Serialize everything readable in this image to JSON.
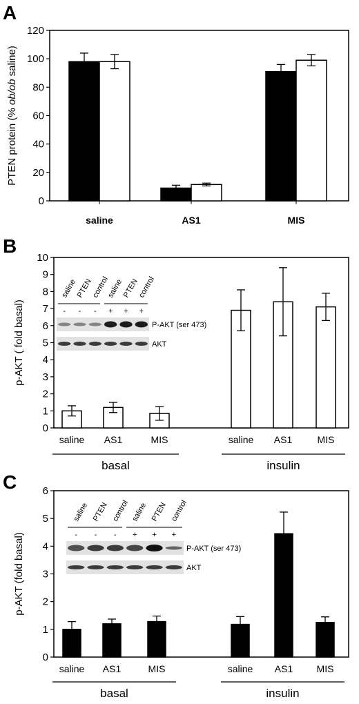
{
  "chart_data": [
    {
      "panel": "A",
      "type": "bar",
      "ylabel_parts": [
        "PTEN protein (% ",
        "ob/ob",
        " saline)"
      ],
      "ylim": [
        0,
        120
      ],
      "yticks": [
        0,
        20,
        40,
        60,
        80,
        100,
        120
      ],
      "categories": [
        "saline",
        "AS1",
        "MIS"
      ],
      "series": [
        {
          "color": "#000000",
          "values": [
            98,
            9,
            91
          ],
          "errors": [
            6,
            2,
            5
          ]
        },
        {
          "color": "#ffffff",
          "values": [
            98,
            11.5,
            99
          ],
          "errors": [
            5,
            1,
            4
          ]
        }
      ]
    },
    {
      "panel": "B",
      "type": "bar",
      "ylabel": "p-AKT ( fold basal)",
      "ylim": [
        0,
        10
      ],
      "yticks": [
        0,
        1,
        2,
        3,
        4,
        5,
        6,
        7,
        8,
        9,
        10
      ],
      "groups": [
        {
          "label": "basal",
          "categories": [
            "saline",
            "AS1",
            "MIS"
          ],
          "values": [
            1.0,
            1.2,
            0.85
          ],
          "errors": [
            0.3,
            0.3,
            0.4
          ]
        },
        {
          "label": "insulin",
          "categories": [
            "saline",
            "AS1",
            "MIS"
          ],
          "values": [
            6.9,
            7.4,
            7.1
          ],
          "errors": [
            1.2,
            2.0,
            0.8
          ]
        }
      ],
      "bar_color": "#ffffff",
      "blot": {
        "lanes": [
          "saline",
          "PTEN",
          "control",
          "saline",
          "PTEN",
          "control"
        ],
        "signs": [
          "-",
          "-",
          "-",
          "+",
          "+",
          "+"
        ],
        "bands": [
          "P-AKT (ser 473)",
          "AKT"
        ]
      }
    },
    {
      "panel": "C",
      "type": "bar",
      "ylabel": "p-AKT (fold basal)",
      "ylim": [
        0,
        6
      ],
      "yticks": [
        0,
        1,
        2,
        3,
        4,
        5,
        6
      ],
      "groups": [
        {
          "label": "basal",
          "categories": [
            "saline",
            "AS1",
            "MIS"
          ],
          "values": [
            1.0,
            1.2,
            1.28
          ],
          "errors": [
            0.28,
            0.17,
            0.2
          ]
        },
        {
          "label": "insulin",
          "categories": [
            "saline",
            "AS1",
            "MIS"
          ],
          "values": [
            1.18,
            4.45,
            1.25
          ],
          "errors": [
            0.28,
            0.78,
            0.2
          ]
        }
      ],
      "bar_color": "#000000",
      "blot": {
        "lanes": [
          "saline",
          "PTEN",
          "control",
          "saline",
          "PTEN",
          "control"
        ],
        "signs": [
          "-",
          "-",
          "-",
          "+",
          "+",
          "+"
        ],
        "bands": [
          "P-AKT (ser 473)",
          "AKT"
        ]
      }
    }
  ]
}
